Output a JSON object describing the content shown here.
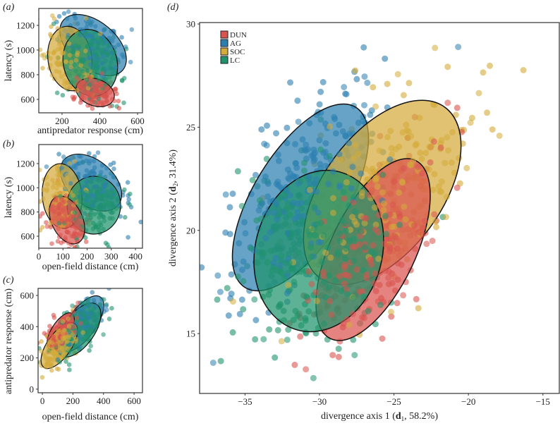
{
  "groups": [
    {
      "name": "DUN",
      "color": "#d9534f"
    },
    {
      "name": "AG",
      "color": "#2b7fb0"
    },
    {
      "name": "SOC",
      "color": "#d4ab3b"
    },
    {
      "name": "LC",
      "color": "#1f936b"
    }
  ],
  "chart_data": [
    {
      "panel": "(a)",
      "type": "scatter",
      "xlabel": "antipredator response (cm)",
      "ylabel": "latency (s)",
      "xticks": [
        "200",
        "400",
        "600"
      ],
      "xtick_values": [
        200,
        400,
        600
      ],
      "yticks": [
        "600",
        "800",
        "1000",
        "1200"
      ],
      "ytick_values": [
        600,
        800,
        1000,
        1200
      ],
      "xlim": [
        77,
        626
      ],
      "ylim": [
        491,
        1337
      ]
    },
    {
      "panel": "(b)",
      "type": "scatter",
      "xlabel": "open-field distance (cm)",
      "ylabel": "latency (s)",
      "xticks": [
        "0",
        "100",
        "200",
        "300",
        "400"
      ],
      "xtick_values": [
        0,
        100,
        200,
        300,
        400
      ],
      "yticks": [
        "600",
        "800",
        "1000",
        "1200"
      ],
      "ytick_values": [
        600,
        800,
        1000,
        1200
      ],
      "xlim": [
        0,
        429
      ],
      "ylim": [
        501,
        1357
      ]
    },
    {
      "panel": "(c)",
      "type": "scatter",
      "xlabel": "open-field distance (cm)",
      "ylabel": "antipredator response (cm)",
      "xticks": [
        "0",
        "200",
        "400",
        "600"
      ],
      "xtick_values": [
        0,
        200,
        400,
        600
      ],
      "yticks": [
        "0",
        "200",
        "400",
        "600"
      ],
      "ytick_values": [
        0,
        200,
        400,
        600
      ],
      "xlim": [
        -28,
        655
      ],
      "ylim": [
        -23,
        645
      ]
    },
    {
      "panel": "(d)",
      "type": "scatter",
      "xlabel_parts": [
        "divergence axis 1 (",
        "d",
        "1",
        ", 58.2%)"
      ],
      "ylabel_parts": [
        "divergence axis 2 (",
        "d",
        "2",
        ", 31.4%)"
      ],
      "xticks": [
        "−35",
        "−30",
        "−25",
        "−20",
        "−15"
      ],
      "xtick_values": [
        -35,
        -30,
        -25,
        -20,
        -15
      ],
      "yticks": [
        "15",
        "20",
        "25",
        "30"
      ],
      "ytick_values": [
        15,
        20,
        25,
        30
      ],
      "xlim": [
        -38.05,
        -13.9
      ],
      "ylim": [
        12.1,
        30.07
      ],
      "legend": {
        "placement": "top-left",
        "entries": [
          "DUN",
          "AG",
          "SOC",
          "LC"
        ]
      },
      "group_centers": {
        "DUN": [
          -26.4,
          19.1
        ],
        "AG": [
          -31.2,
          21.8
        ],
        "SOC": [
          -25.9,
          22.1
        ],
        "LC": [
          -30.0,
          19.1
        ]
      }
    }
  ]
}
